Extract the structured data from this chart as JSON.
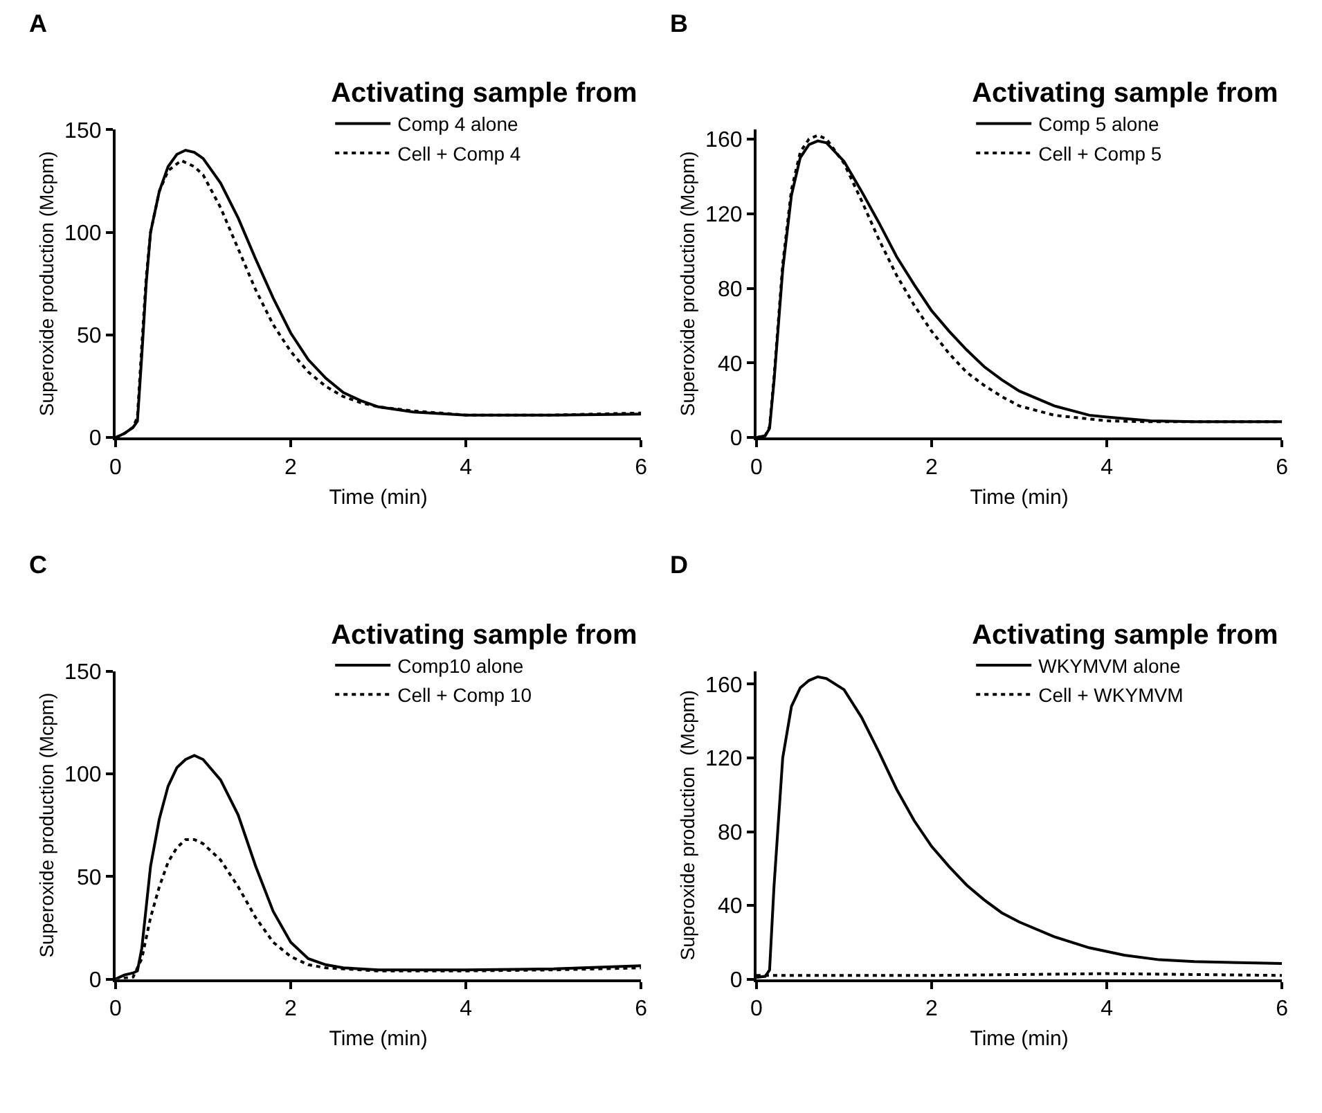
{
  "chart_data": [
    {
      "type": "line",
      "title": "A",
      "legend_title": "Activating sample from",
      "xlabel": "Time (min)",
      "ylabel": "Superoxide production (Mcpm)",
      "xlim": [
        0,
        6
      ],
      "xticks": [
        0,
        2,
        4,
        6
      ],
      "ylim": [
        0,
        150
      ],
      "yticks": [
        0,
        50,
        100,
        150
      ],
      "grid": false,
      "legend": "top right",
      "marker": "none",
      "series": [
        {
          "name": "Comp 4 alone",
          "color": "#000000",
          "line_style": "solid",
          "x": [
            0,
            0.1,
            0.2,
            0.25,
            0.3,
            0.35,
            0.4,
            0.5,
            0.6,
            0.7,
            0.8,
            0.9,
            1.0,
            1.2,
            1.4,
            1.6,
            1.8,
            2.0,
            2.2,
            2.4,
            2.6,
            2.8,
            3.0,
            3.4,
            4,
            5,
            6
          ],
          "values": [
            0,
            2,
            5,
            8,
            40,
            75,
            100,
            120,
            132,
            138,
            140,
            139,
            136,
            124,
            107,
            87,
            68,
            51,
            38,
            29,
            22,
            18,
            15,
            12.5,
            11,
            11,
            11.5
          ]
        },
        {
          "name": "Cell + Comp 4",
          "color": "#000000",
          "line_style": "dotted",
          "x": [
            0,
            0.1,
            0.2,
            0.25,
            0.3,
            0.35,
            0.4,
            0.5,
            0.6,
            0.75,
            0.9,
            1.0,
            1.2,
            1.4,
            1.6,
            1.8,
            2.0,
            2.2,
            2.4,
            2.6,
            2.8,
            3.0,
            3.4,
            4,
            5,
            6
          ],
          "values": [
            0,
            2,
            5,
            10,
            45,
            78,
            100,
            120,
            130,
            135,
            132,
            128,
            112,
            92,
            72,
            55,
            42,
            32,
            25,
            20,
            17,
            15,
            13,
            11,
            11,
            12
          ]
        }
      ]
    },
    {
      "type": "line",
      "title": "B",
      "legend_title": "Activating sample from",
      "xlabel": "Time (min)",
      "ylabel": "Superoxide production (Mcpm)",
      "xlim": [
        0,
        6
      ],
      "xticks": [
        0,
        2,
        4,
        6
      ],
      "ylim": [
        0,
        165
      ],
      "yticks": [
        0,
        40,
        80,
        120,
        160
      ],
      "grid": false,
      "legend": "top right",
      "marker": "none",
      "series": [
        {
          "name": "Comp 5 alone",
          "color": "#000000",
          "line_style": "solid",
          "x": [
            0,
            0.1,
            0.15,
            0.2,
            0.3,
            0.4,
            0.5,
            0.6,
            0.7,
            0.8,
            1.0,
            1.2,
            1.4,
            1.6,
            1.8,
            2.0,
            2.2,
            2.4,
            2.6,
            2.8,
            3.0,
            3.4,
            3.8,
            4.0,
            4.5,
            5,
            6
          ],
          "values": [
            0,
            1,
            5,
            30,
            90,
            130,
            150,
            157,
            159,
            158,
            148,
            132,
            115,
            97,
            82,
            68,
            57,
            47,
            38,
            31,
            25,
            17,
            12,
            11,
            9,
            8.5,
            8.5
          ]
        },
        {
          "name": "Cell + Comp 5",
          "color": "#000000",
          "line_style": "dotted",
          "x": [
            0,
            0.1,
            0.15,
            0.2,
            0.3,
            0.4,
            0.5,
            0.6,
            0.7,
            0.8,
            1.0,
            1.2,
            1.4,
            1.6,
            1.8,
            2.0,
            2.2,
            2.4,
            2.6,
            2.8,
            3.0,
            3.4,
            4,
            4.5,
            5,
            6
          ],
          "values": [
            0,
            1,
            6,
            32,
            93,
            133,
            153,
            160,
            162,
            160,
            147,
            127,
            106,
            87,
            71,
            57,
            45,
            35,
            28,
            22,
            17,
            12,
            9,
            8.5,
            8.5,
            8.5
          ]
        }
      ]
    },
    {
      "type": "line",
      "title": "C",
      "legend_title": "Activating sample from",
      "xlabel": "Time (min)",
      "ylabel": "Superoxide production (Mcpm)",
      "xlim": [
        0,
        6
      ],
      "xticks": [
        0,
        2,
        4,
        6
      ],
      "ylim": [
        0,
        150
      ],
      "yticks": [
        0,
        50,
        100,
        150
      ],
      "grid": false,
      "legend": "top right",
      "marker": "none",
      "series": [
        {
          "name": "Comp10 alone",
          "color": "#000000",
          "line_style": "solid",
          "x": [
            0,
            0.1,
            0.2,
            0.25,
            0.3,
            0.35,
            0.4,
            0.5,
            0.6,
            0.7,
            0.8,
            0.9,
            1.0,
            1.2,
            1.4,
            1.6,
            1.8,
            2.0,
            2.2,
            2.4,
            2.6,
            3,
            4,
            5,
            6
          ],
          "values": [
            0,
            2,
            3,
            4,
            15,
            35,
            55,
            78,
            94,
            103,
            107,
            109,
            107,
            97,
            80,
            55,
            33,
            18,
            10,
            7,
            5.5,
            4.5,
            4.5,
            5,
            6.5
          ]
        },
        {
          "name": "Cell + Comp 10",
          "color": "#000000",
          "line_style": "dotted",
          "x": [
            0,
            0.2,
            0.3,
            0.4,
            0.5,
            0.6,
            0.7,
            0.8,
            0.9,
            1.0,
            1.2,
            1.4,
            1.6,
            1.8,
            2.0,
            2.2,
            2.4,
            3,
            4,
            5,
            6
          ],
          "values": [
            0,
            1,
            10,
            30,
            45,
            57,
            64,
            68,
            68,
            66,
            58,
            45,
            30,
            18,
            11,
            7,
            5.5,
            4,
            4,
            4.5,
            5.5
          ]
        }
      ]
    },
    {
      "type": "line",
      "title": "D",
      "legend_title": "Activating sample from",
      "xlabel": "Time (min)",
      "ylabel": "Superoxide production  (Mcpm)",
      "xlim": [
        0,
        6
      ],
      "xticks": [
        0,
        2,
        4,
        6
      ],
      "ylim": [
        0,
        167
      ],
      "yticks": [
        0,
        40,
        80,
        120,
        160
      ],
      "grid": false,
      "legend": "top right",
      "marker": "none",
      "series": [
        {
          "name": "WKYMVM alone",
          "color": "#000000",
          "line_style": "solid",
          "x": [
            0,
            0.1,
            0.15,
            0.2,
            0.3,
            0.4,
            0.5,
            0.6,
            0.7,
            0.8,
            1.0,
            1.2,
            1.4,
            1.6,
            1.8,
            2.0,
            2.2,
            2.4,
            2.6,
            2.8,
            3.0,
            3.4,
            3.8,
            4.2,
            4.6,
            5,
            6
          ],
          "values": [
            1,
            1.5,
            5,
            50,
            120,
            148,
            158,
            162,
            164,
            163,
            157,
            142,
            123,
            103,
            86,
            72,
            61,
            51,
            43,
            36,
            31,
            23,
            17,
            13,
            10.5,
            9.5,
            8.5
          ]
        },
        {
          "name": "Cell + WKYMVM",
          "color": "#000000",
          "line_style": "dotted",
          "x": [
            0,
            1,
            2,
            3,
            4,
            5,
            6
          ],
          "values": [
            2,
            2,
            2,
            2.5,
            3,
            2.5,
            2
          ]
        }
      ]
    }
  ]
}
